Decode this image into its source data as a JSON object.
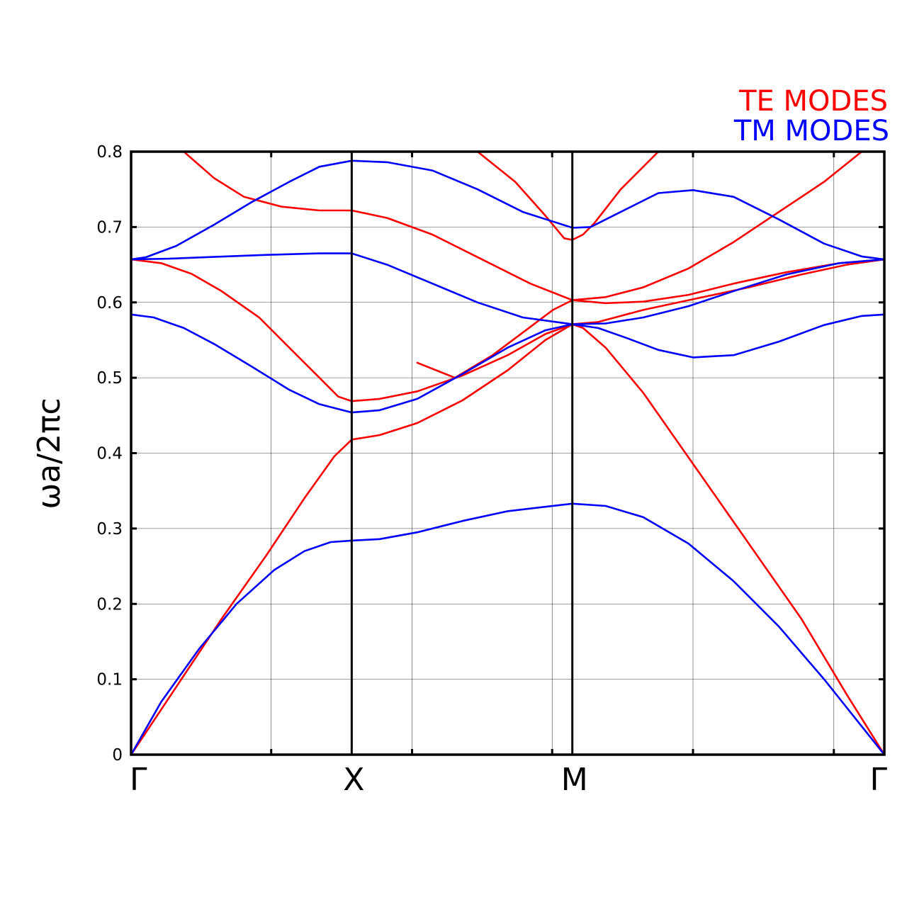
{
  "chart_data": {
    "type": "line",
    "title": "",
    "ylabel": "ωa/2πc",
    "xlabel": "",
    "ylim": [
      0,
      0.8
    ],
    "xlim": [
      0,
      1
    ],
    "grid": true,
    "legend_position": "top-right",
    "y_ticks": [
      "0",
      "0.1",
      "0.2",
      "0.3",
      "0.4",
      "0.5",
      "0.6",
      "0.7",
      "0.8"
    ],
    "x_symmetry_points": [
      {
        "label": "Γ",
        "x": 0.0
      },
      {
        "label": "X",
        "x": 0.2929
      },
      {
        "label": "M",
        "x": 0.5858
      },
      {
        "label": "Γ",
        "x": 1.0
      }
    ],
    "x_grid": [
      0.186,
      0.373,
      0.559,
      0.746,
      0.933
    ],
    "series": [
      {
        "name": "TE MODES",
        "color": "#ff0000",
        "bands": [
          [
            [
              0,
              0
            ],
            [
              0.02,
              0.03
            ],
            [
              0.06,
              0.09
            ],
            [
              0.12,
              0.18
            ],
            [
              0.18,
              0.265
            ],
            [
              0.23,
              0.34
            ],
            [
              0.27,
              0.396
            ],
            [
              0.2929,
              0.418
            ],
            [
              0.33,
              0.424
            ],
            [
              0.38,
              0.44
            ],
            [
              0.44,
              0.47
            ],
            [
              0.5,
              0.51
            ],
            [
              0.55,
              0.55
            ],
            [
              0.5858,
              0.571
            ],
            [
              0.6,
              0.566
            ],
            [
              0.63,
              0.54
            ],
            [
              0.68,
              0.48
            ],
            [
              0.75,
              0.38
            ],
            [
              0.82,
              0.28
            ],
            [
              0.89,
              0.18
            ],
            [
              0.95,
              0.08
            ],
            [
              1.0,
              0
            ]
          ],
          [
            [
              0,
              0.657
            ],
            [
              0.04,
              0.652
            ],
            [
              0.08,
              0.638
            ],
            [
              0.12,
              0.615
            ],
            [
              0.17,
              0.58
            ],
            [
              0.21,
              0.54
            ],
            [
              0.25,
              0.5
            ],
            [
              0.275,
              0.475
            ],
            [
              0.2929,
              0.469
            ],
            [
              0.33,
              0.472
            ],
            [
              0.38,
              0.482
            ],
            [
              0.44,
              0.503
            ],
            [
              0.5,
              0.53
            ],
            [
              0.55,
              0.558
            ],
            [
              0.5858,
              0.571
            ],
            [
              0.62,
              0.574
            ],
            [
              0.68,
              0.59
            ],
            [
              0.75,
              0.605
            ],
            [
              0.82,
              0.62
            ],
            [
              0.89,
              0.637
            ],
            [
              0.95,
              0.65
            ],
            [
              1.0,
              0.657
            ]
          ],
          [
            [
              0,
              0.902
            ],
            [
              0.03,
              0.85
            ],
            [
              0.07,
              0.8
            ],
            [
              0.11,
              0.765
            ],
            [
              0.15,
              0.74
            ],
            [
              0.2,
              0.727
            ],
            [
              0.25,
              0.722
            ],
            [
              0.2929,
              0.722
            ],
            [
              0.34,
              0.712
            ],
            [
              0.4,
              0.69
            ],
            [
              0.46,
              0.66
            ],
            [
              0.53,
              0.625
            ],
            [
              0.5858,
              0.603
            ],
            [
              0.63,
              0.599
            ],
            [
              0.68,
              0.601
            ],
            [
              0.74,
              0.61
            ],
            [
              0.8,
              0.625
            ],
            [
              0.87,
              0.64
            ],
            [
              0.94,
              0.652
            ],
            [
              1.0,
              0.657
            ]
          ],
          [
            [
              0.35,
              0.93
            ],
            [
              0.4,
              0.85
            ],
            [
              0.46,
              0.8
            ],
            [
              0.51,
              0.76
            ],
            [
              0.55,
              0.715
            ],
            [
              0.575,
              0.685
            ],
            [
              0.5858,
              0.683
            ],
            [
              0.6,
              0.69
            ],
            [
              0.615,
              0.705
            ],
            [
              0.65,
              0.75
            ],
            [
              0.7,
              0.8
            ],
            [
              0.74,
              0.84
            ]
          ],
          [
            [
              0.38,
              0.52
            ],
            [
              0.43,
              0.5
            ],
            [
              0.48,
              0.53
            ],
            [
              0.52,
              0.56
            ],
            [
              0.56,
              0.59
            ],
            [
              0.5858,
              0.603
            ],
            [
              0.63,
              0.607
            ],
            [
              0.68,
              0.62
            ],
            [
              0.74,
              0.645
            ],
            [
              0.8,
              0.68
            ],
            [
              0.86,
              0.72
            ],
            [
              0.92,
              0.76
            ],
            [
              0.97,
              0.8
            ]
          ]
        ]
      },
      {
        "name": "TM MODES",
        "color": "#0000ff",
        "bands": [
          [
            [
              0,
              0
            ],
            [
              0.04,
              0.07
            ],
            [
              0.09,
              0.14
            ],
            [
              0.14,
              0.2
            ],
            [
              0.19,
              0.245
            ],
            [
              0.23,
              0.27
            ],
            [
              0.265,
              0.282
            ],
            [
              0.2929,
              0.284
            ],
            [
              0.33,
              0.286
            ],
            [
              0.38,
              0.295
            ],
            [
              0.44,
              0.31
            ],
            [
              0.5,
              0.323
            ],
            [
              0.5858,
              0.333
            ],
            [
              0.63,
              0.33
            ],
            [
              0.68,
              0.315
            ],
            [
              0.74,
              0.28
            ],
            [
              0.8,
              0.23
            ],
            [
              0.86,
              0.17
            ],
            [
              0.92,
              0.1
            ],
            [
              0.96,
              0.05
            ],
            [
              1.0,
              0
            ]
          ],
          [
            [
              0,
              0.584
            ],
            [
              0.03,
              0.58
            ],
            [
              0.07,
              0.566
            ],
            [
              0.11,
              0.545
            ],
            [
              0.16,
              0.515
            ],
            [
              0.21,
              0.484
            ],
            [
              0.25,
              0.465
            ],
            [
              0.2929,
              0.454
            ],
            [
              0.33,
              0.457
            ],
            [
              0.38,
              0.472
            ],
            [
              0.44,
              0.505
            ],
            [
              0.5,
              0.54
            ],
            [
              0.55,
              0.563
            ],
            [
              0.5858,
              0.571
            ],
            [
              0.62,
              0.566
            ],
            [
              0.66,
              0.552
            ],
            [
              0.7,
              0.537
            ],
            [
              0.746,
              0.527
            ],
            [
              0.8,
              0.53
            ],
            [
              0.86,
              0.548
            ],
            [
              0.92,
              0.57
            ],
            [
              0.97,
              0.582
            ],
            [
              1.0,
              0.584
            ]
          ],
          [
            [
              0,
              0.657
            ],
            [
              0.05,
              0.658
            ],
            [
              0.1,
              0.66
            ],
            [
              0.18,
              0.663
            ],
            [
              0.25,
              0.665
            ],
            [
              0.2929,
              0.665
            ],
            [
              0.34,
              0.65
            ],
            [
              0.4,
              0.625
            ],
            [
              0.46,
              0.6
            ],
            [
              0.52,
              0.58
            ],
            [
              0.5858,
              0.571
            ],
            [
              0.63,
              0.572
            ],
            [
              0.68,
              0.58
            ],
            [
              0.74,
              0.595
            ],
            [
              0.8,
              0.615
            ],
            [
              0.87,
              0.637
            ],
            [
              0.94,
              0.652
            ],
            [
              1.0,
              0.657
            ]
          ],
          [
            [
              0,
              0.657
            ],
            [
              0.02,
              0.66
            ],
            [
              0.06,
              0.675
            ],
            [
              0.11,
              0.703
            ],
            [
              0.16,
              0.733
            ],
            [
              0.21,
              0.76
            ],
            [
              0.25,
              0.78
            ],
            [
              0.2929,
              0.788
            ],
            [
              0.34,
              0.786
            ],
            [
              0.4,
              0.775
            ],
            [
              0.46,
              0.75
            ],
            [
              0.52,
              0.72
            ],
            [
              0.5858,
              0.699
            ],
            [
              0.61,
              0.7
            ],
            [
              0.65,
              0.72
            ],
            [
              0.7,
              0.745
            ],
            [
              0.746,
              0.749
            ],
            [
              0.8,
              0.74
            ],
            [
              0.86,
              0.71
            ],
            [
              0.92,
              0.678
            ],
            [
              0.97,
              0.661
            ],
            [
              1.0,
              0.657
            ]
          ]
        ]
      }
    ]
  }
}
